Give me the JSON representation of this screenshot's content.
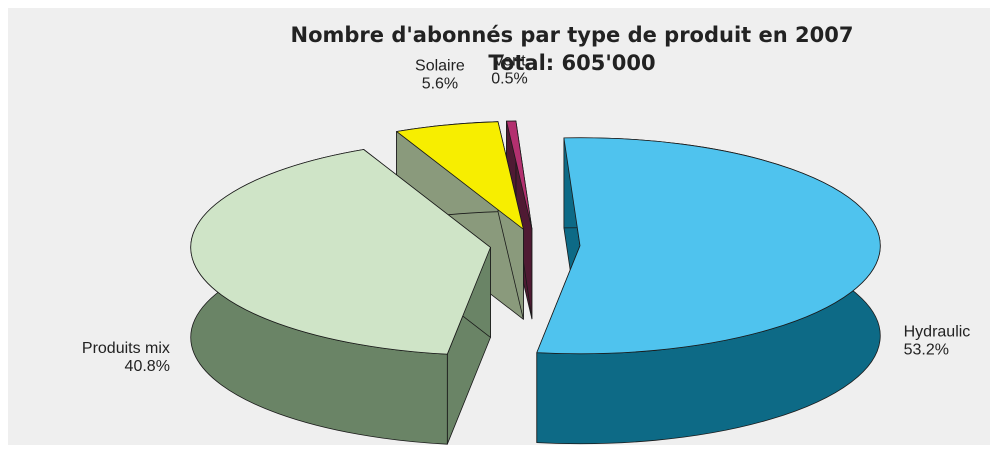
{
  "chart_data": {
    "type": "pie3d",
    "title": "Nombre d'abonnés  par type de produit en 2007",
    "subtitle": "Total: 605'000",
    "categories": [
      "Solaire",
      "Vent",
      "Hydraulic",
      "Produits mix"
    ],
    "values": [
      5.6,
      0.5,
      53.2,
      40.8
    ],
    "value_labels": [
      "5.6%",
      "0.5%",
      "53.2%",
      "40.8%"
    ],
    "colors": [
      "#f7ee00",
      "#b3306f",
      "#4fc3ee",
      "#cfe4c7"
    ],
    "side_colors": [
      "#8a9a7c",
      "#4f1a33",
      "#0d6a86",
      "#6a8466"
    ]
  }
}
